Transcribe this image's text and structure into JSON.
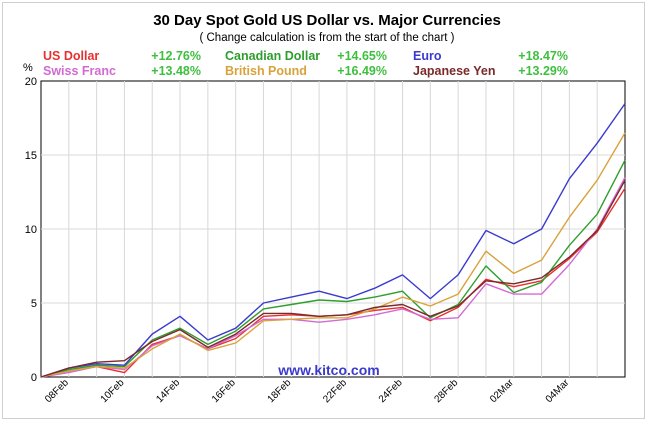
{
  "chart_data": {
    "type": "line",
    "title": "30 Day Spot Gold US Dollar vs. Major Currencies",
    "subtitle": "( Change calculation is from the start of the chart )",
    "ylabel": "%",
    "ylim": [
      0,
      20
    ],
    "yticks": [
      "0",
      "5",
      "10",
      "15",
      "20"
    ],
    "grid": true,
    "legend_placement": "top",
    "watermark": "www.kitco.com",
    "tick_labels": [
      "08Feb",
      "10Feb",
      "14Feb",
      "16Feb",
      "18Feb",
      "22Feb",
      "24Feb",
      "28Feb",
      "02Mar",
      "04Mar"
    ],
    "tick_positions": [
      1,
      3,
      5,
      7,
      9,
      11,
      13,
      15,
      17,
      19
    ],
    "x": [
      0,
      1,
      2,
      3,
      4,
      5,
      6,
      7,
      8,
      9,
      10,
      11,
      12,
      13,
      14,
      15,
      16,
      17,
      18,
      19,
      20,
      21
    ],
    "series": [
      {
        "name": "US Dollar",
        "change": "+12.76%",
        "color": "#e83030",
        "values": [
          0,
          0.4,
          0.7,
          0.3,
          2.2,
          2.8,
          1.9,
          2.6,
          4.1,
          4.2,
          4.1,
          4.2,
          4.5,
          4.7,
          3.8,
          4.7,
          6.6,
          6.1,
          6.5,
          8.0,
          9.8,
          12.76
        ]
      },
      {
        "name": "Canadian Dollar",
        "change": "+14.65%",
        "color": "#2e9e2e",
        "values": [
          0,
          0.5,
          0.8,
          0.7,
          2.5,
          3.3,
          2.2,
          3.1,
          4.6,
          4.9,
          5.2,
          5.1,
          5.4,
          5.8,
          4.0,
          4.9,
          7.5,
          5.7,
          6.4,
          8.9,
          11.0,
          14.65
        ]
      },
      {
        "name": "Euro",
        "change": "+18.47%",
        "color": "#3a3ad0",
        "values": [
          0,
          0.6,
          0.9,
          0.8,
          2.9,
          4.1,
          2.5,
          3.3,
          5.0,
          5.4,
          5.8,
          5.3,
          6.0,
          6.9,
          5.3,
          6.9,
          9.9,
          9.0,
          10.0,
          13.4,
          15.8,
          18.47
        ]
      },
      {
        "name": "Swiss Franc",
        "change": "+13.48%",
        "color": "#d36ad3",
        "values": [
          0,
          0.3,
          0.7,
          0.5,
          2.1,
          2.8,
          1.9,
          2.8,
          3.9,
          3.9,
          3.7,
          3.9,
          4.2,
          4.6,
          3.9,
          4.0,
          6.3,
          5.6,
          5.6,
          7.6,
          10.0,
          13.48
        ]
      },
      {
        "name": "British Pound",
        "change": "+16.49%",
        "color": "#d9a23a",
        "values": [
          0,
          0.4,
          0.7,
          0.6,
          1.9,
          2.9,
          1.8,
          2.3,
          3.8,
          3.9,
          4.0,
          4.0,
          4.6,
          5.4,
          4.8,
          5.6,
          8.5,
          7.0,
          7.9,
          10.8,
          13.3,
          16.49
        ]
      },
      {
        "name": "Japanese Yen",
        "change": "+13.29%",
        "color": "#7a2a2a",
        "values": [
          0,
          0.6,
          1.0,
          1.1,
          2.4,
          3.2,
          2.0,
          2.9,
          4.3,
          4.3,
          4.1,
          4.2,
          4.7,
          4.9,
          4.1,
          4.8,
          6.5,
          6.3,
          6.7,
          8.1,
          9.9,
          13.29
        ]
      }
    ]
  }
}
